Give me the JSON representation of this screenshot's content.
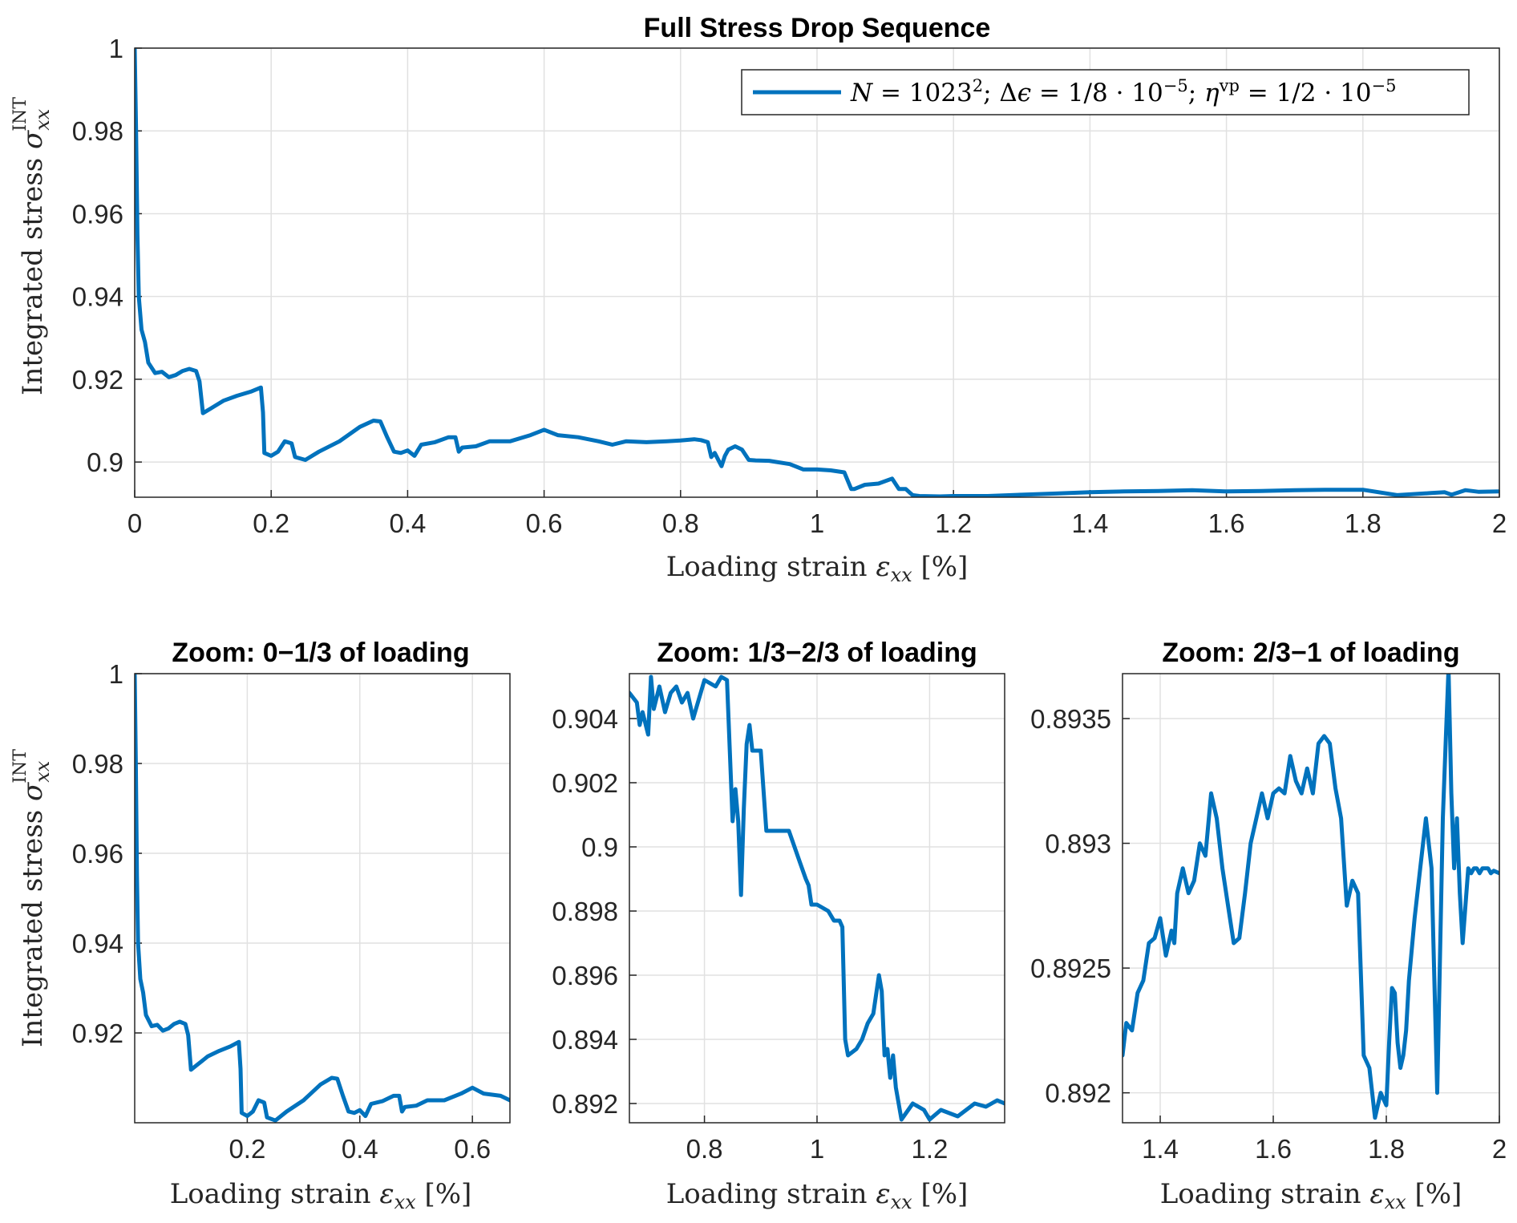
{
  "colors": {
    "series": "#0072BD",
    "grid": "#e1e1e1",
    "axis": "#262626"
  },
  "chart_data": [
    {
      "type": "line",
      "title": "Full Stress Drop Sequence",
      "xlabel": "Loading strain ε_xx [%]",
      "ylabel": "Integrated stress σ_xx^INT",
      "xlim": [
        0,
        2
      ],
      "ylim": [
        0.8915,
        1.0
      ],
      "xticks": [
        "0",
        "0.2",
        "0.4",
        "0.6",
        "0.8",
        "1",
        "1.2",
        "1.4",
        "1.6",
        "1.8",
        "2"
      ],
      "yticks": [
        "0.9",
        "0.92",
        "0.94",
        "0.96",
        "0.98",
        "1"
      ],
      "grid": true,
      "legend_position": "top-right",
      "series": [
        {
          "name": "N = 1023²; Δϵ = 1/8·10⁻⁵; η^vp = 1/2·10⁻⁵",
          "x": [
            0,
            0.002,
            0.004,
            0.006,
            0.01,
            0.015,
            0.02,
            0.03,
            0.04,
            0.05,
            0.06,
            0.07,
            0.08,
            0.09,
            0.095,
            0.1,
            0.11,
            0.13,
            0.15,
            0.17,
            0.185,
            0.188,
            0.19,
            0.2,
            0.21,
            0.22,
            0.23,
            0.235,
            0.25,
            0.27,
            0.3,
            0.33,
            0.35,
            0.36,
            0.37,
            0.38,
            0.39,
            0.4,
            0.41,
            0.42,
            0.44,
            0.46,
            0.47,
            0.475,
            0.48,
            0.5,
            0.52,
            0.55,
            0.58,
            0.6,
            0.62,
            0.65,
            0.68,
            0.7,
            0.72,
            0.75,
            0.78,
            0.8,
            0.82,
            0.83,
            0.84,
            0.845,
            0.85,
            0.86,
            0.865,
            0.87,
            0.88,
            0.89,
            0.9,
            0.91,
            0.93,
            0.96,
            0.98,
            1.0,
            1.02,
            1.04,
            1.05,
            1.055,
            1.07,
            1.09,
            1.11,
            1.12,
            1.13,
            1.14,
            1.15,
            1.18,
            1.2,
            1.25,
            1.3,
            1.35,
            1.4,
            1.45,
            1.5,
            1.55,
            1.6,
            1.65,
            1.7,
            1.75,
            1.8,
            1.85,
            1.9,
            1.92,
            1.93,
            1.95,
            1.97,
            2.0
          ],
          "y": [
            1.0,
            0.98,
            0.955,
            0.94,
            0.932,
            0.929,
            0.924,
            0.9215,
            0.9218,
            0.9205,
            0.921,
            0.922,
            0.9225,
            0.922,
            0.9195,
            0.9118,
            0.9128,
            0.9148,
            0.916,
            0.917,
            0.918,
            0.912,
            0.9022,
            0.9015,
            0.9025,
            0.905,
            0.9045,
            0.9012,
            0.9005,
            0.9025,
            0.905,
            0.9085,
            0.91,
            0.9098,
            0.906,
            0.9025,
            0.9022,
            0.9028,
            0.9015,
            0.9042,
            0.9048,
            0.906,
            0.906,
            0.9025,
            0.9035,
            0.9038,
            0.905,
            0.905,
            0.9065,
            0.9078,
            0.9065,
            0.906,
            0.905,
            0.9042,
            0.905,
            0.9048,
            0.905,
            0.9052,
            0.9055,
            0.9053,
            0.9048,
            0.9012,
            0.9022,
            0.899,
            0.9015,
            0.903,
            0.9038,
            0.903,
            0.9005,
            0.9004,
            0.9003,
            0.8995,
            0.8982,
            0.8982,
            0.898,
            0.8975,
            0.8935,
            0.8935,
            0.8945,
            0.8948,
            0.896,
            0.8935,
            0.8935,
            0.892,
            0.8918,
            0.8917,
            0.8918,
            0.8918,
            0.8921,
            0.8924,
            0.8927,
            0.8929,
            0.893,
            0.8932,
            0.8929,
            0.893,
            0.8932,
            0.8933,
            0.8933,
            0.892,
            0.8925,
            0.8927,
            0.8921,
            0.8932,
            0.8928,
            0.8929
          ]
        }
      ]
    },
    {
      "type": "line",
      "title": "Zoom: 0−1/3 of loading",
      "xlabel": "Loading strain ε_xx [%]",
      "ylabel": "Integrated stress σ_xx^INT",
      "xlim": [
        0,
        0.6667
      ],
      "ylim": [
        0.9,
        1.0
      ],
      "xticks": [
        "0.2",
        "0.4",
        "0.6"
      ],
      "yticks": [
        "0.92",
        "0.94",
        "0.96",
        "0.98",
        "1"
      ],
      "grid": true,
      "series": [
        {
          "x": [
            0,
            0.002,
            0.004,
            0.006,
            0.01,
            0.015,
            0.02,
            0.03,
            0.04,
            0.05,
            0.06,
            0.07,
            0.08,
            0.09,
            0.095,
            0.1,
            0.11,
            0.13,
            0.15,
            0.17,
            0.185,
            0.188,
            0.19,
            0.2,
            0.21,
            0.22,
            0.23,
            0.235,
            0.25,
            0.27,
            0.3,
            0.33,
            0.35,
            0.36,
            0.37,
            0.38,
            0.39,
            0.4,
            0.41,
            0.42,
            0.44,
            0.46,
            0.47,
            0.475,
            0.48,
            0.5,
            0.52,
            0.55,
            0.58,
            0.6,
            0.62,
            0.65,
            0.6667
          ],
          "y": [
            1.0,
            0.98,
            0.955,
            0.94,
            0.932,
            0.929,
            0.924,
            0.9215,
            0.9218,
            0.9205,
            0.921,
            0.922,
            0.9225,
            0.922,
            0.9195,
            0.9118,
            0.9128,
            0.9148,
            0.916,
            0.917,
            0.918,
            0.912,
            0.9022,
            0.9015,
            0.9025,
            0.905,
            0.9045,
            0.9012,
            0.9005,
            0.9025,
            0.905,
            0.9085,
            0.91,
            0.9098,
            0.906,
            0.9025,
            0.9022,
            0.9028,
            0.9015,
            0.9042,
            0.9048,
            0.906,
            0.906,
            0.9025,
            0.9035,
            0.9038,
            0.905,
            0.905,
            0.9065,
            0.9078,
            0.9065,
            0.906,
            0.905
          ]
        }
      ]
    },
    {
      "type": "line",
      "title": "Zoom: 1/3−2/3 of loading",
      "xlabel": "Loading strain ε_xx [%]",
      "ylabel": "",
      "xlim": [
        0.6667,
        1.3333
      ],
      "ylim": [
        0.8914,
        0.9054
      ],
      "xticks": [
        "0.8",
        "1",
        "1.2"
      ],
      "yticks": [
        "0.892",
        "0.894",
        "0.896",
        "0.898",
        "0.9",
        "0.902",
        "0.904"
      ],
      "grid": true,
      "series": [
        {
          "x": [
            0.6667,
            0.68,
            0.685,
            0.69,
            0.7,
            0.705,
            0.71,
            0.72,
            0.73,
            0.74,
            0.75,
            0.76,
            0.77,
            0.78,
            0.8,
            0.82,
            0.83,
            0.84,
            0.845,
            0.85,
            0.855,
            0.86,
            0.865,
            0.87,
            0.875,
            0.88,
            0.885,
            0.89,
            0.9,
            0.91,
            0.92,
            0.95,
            0.96,
            0.97,
            0.98,
            0.985,
            0.99,
            1.0,
            1.02,
            1.03,
            1.04,
            1.045,
            1.05,
            1.055,
            1.07,
            1.08,
            1.09,
            1.1,
            1.11,
            1.115,
            1.12,
            1.125,
            1.13,
            1.135,
            1.14,
            1.15,
            1.17,
            1.19,
            1.2,
            1.22,
            1.25,
            1.28,
            1.3,
            1.32,
            1.3333
          ],
          "y": [
            0.9048,
            0.9045,
            0.9038,
            0.9042,
            0.9035,
            0.9053,
            0.9043,
            0.905,
            0.9042,
            0.9048,
            0.905,
            0.9045,
            0.9048,
            0.904,
            0.9052,
            0.905,
            0.9053,
            0.9052,
            0.903,
            0.9008,
            0.9018,
            0.9008,
            0.8985,
            0.9012,
            0.9032,
            0.9038,
            0.903,
            0.903,
            0.903,
            0.9005,
            0.9005,
            0.9005,
            0.9,
            0.8995,
            0.899,
            0.8988,
            0.8982,
            0.8982,
            0.898,
            0.8977,
            0.8977,
            0.8975,
            0.894,
            0.8935,
            0.8937,
            0.894,
            0.8945,
            0.8948,
            0.896,
            0.8955,
            0.8935,
            0.8937,
            0.8928,
            0.8935,
            0.8925,
            0.8915,
            0.892,
            0.8918,
            0.8915,
            0.8918,
            0.8916,
            0.892,
            0.8919,
            0.8921,
            0.892
          ]
        }
      ]
    },
    {
      "type": "line",
      "title": "Zoom: 2/3−1 of loading",
      "xlabel": "Loading strain ε_xx [%]",
      "ylabel": "",
      "xlim": [
        1.3333,
        2.0
      ],
      "ylim": [
        0.89188,
        0.89368
      ],
      "xticks": [
        "1.4",
        "1.6",
        "1.8",
        "2"
      ],
      "yticks": [
        "0.892",
        "0.8925",
        "0.893",
        "0.8935"
      ],
      "grid": true,
      "series": [
        {
          "x": [
            1.3333,
            1.34,
            1.35,
            1.36,
            1.37,
            1.38,
            1.39,
            1.4,
            1.41,
            1.42,
            1.425,
            1.43,
            1.44,
            1.45,
            1.46,
            1.47,
            1.48,
            1.49,
            1.5,
            1.51,
            1.52,
            1.53,
            1.54,
            1.55,
            1.56,
            1.57,
            1.58,
            1.59,
            1.6,
            1.61,
            1.62,
            1.63,
            1.64,
            1.65,
            1.66,
            1.67,
            1.68,
            1.69,
            1.7,
            1.71,
            1.72,
            1.73,
            1.74,
            1.75,
            1.76,
            1.77,
            1.78,
            1.79,
            1.8,
            1.805,
            1.81,
            1.815,
            1.82,
            1.825,
            1.83,
            1.835,
            1.84,
            1.85,
            1.86,
            1.87,
            1.88,
            1.89,
            1.9,
            1.905,
            1.91,
            1.915,
            1.92,
            1.925,
            1.93,
            1.935,
            1.94,
            1.945,
            1.95,
            1.955,
            1.96,
            1.965,
            1.97,
            1.975,
            1.98,
            1.985,
            1.99,
            2.0
          ],
          "y": [
            0.89215,
            0.89228,
            0.89225,
            0.8924,
            0.89245,
            0.8926,
            0.89262,
            0.8927,
            0.89255,
            0.89265,
            0.8926,
            0.8928,
            0.8929,
            0.8928,
            0.89285,
            0.893,
            0.89295,
            0.8932,
            0.8931,
            0.8929,
            0.89275,
            0.8926,
            0.89262,
            0.8928,
            0.893,
            0.8931,
            0.8932,
            0.8931,
            0.8932,
            0.89322,
            0.8932,
            0.89335,
            0.89325,
            0.8932,
            0.8933,
            0.8932,
            0.8934,
            0.89343,
            0.8934,
            0.89322,
            0.8931,
            0.89275,
            0.89285,
            0.8928,
            0.89215,
            0.8921,
            0.8919,
            0.892,
            0.89195,
            0.8922,
            0.89242,
            0.8924,
            0.8922,
            0.8921,
            0.89215,
            0.89225,
            0.89245,
            0.8927,
            0.8929,
            0.8931,
            0.8929,
            0.892,
            0.8931,
            0.8934,
            0.8937,
            0.8932,
            0.8929,
            0.8931,
            0.8928,
            0.8926,
            0.89275,
            0.8929,
            0.89288,
            0.8929,
            0.8929,
            0.89288,
            0.8929,
            0.8929,
            0.8929,
            0.89288,
            0.89289,
            0.89288
          ]
        }
      ]
    }
  ]
}
